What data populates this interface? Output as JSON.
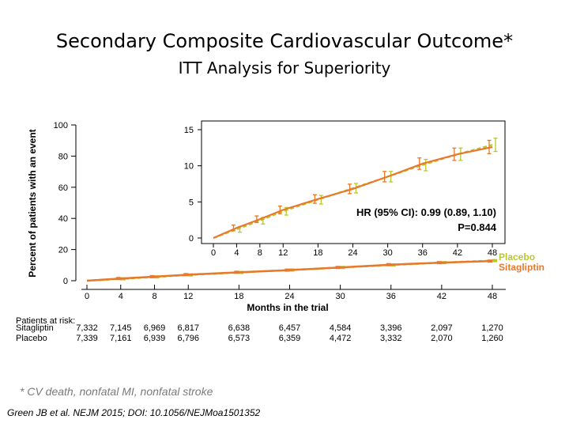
{
  "slide": {
    "title": "Secondary Composite Cardiovascular Outcome*",
    "subtitle": "ITT Analysis for Superiority",
    "footnote": "* CV death, nonfatal MI, nonfatal stroke",
    "citation": "Green JB et al. NEJM 2015; DOI: 10.1056/NEJMoa1501352"
  },
  "colors": {
    "placebo": "#b7c82a",
    "sitagliptin": "#e8782c"
  },
  "chart_data": [
    {
      "type": "line",
      "title": "",
      "xlabel": "Months in the trial",
      "ylabel": "Percent of patients with an event",
      "xlim": [
        0,
        48
      ],
      "ylim": [
        0,
        100
      ],
      "xticks": [
        0,
        4,
        8,
        12,
        18,
        24,
        30,
        36,
        42,
        48
      ],
      "yticks": [
        0,
        20,
        40,
        60,
        80,
        100
      ],
      "legend": [
        "Placebo",
        "Sitagliptin"
      ],
      "legend_position": "right",
      "series": [
        {
          "name": "Placebo",
          "x": [
            0,
            4,
            8,
            12,
            18,
            24,
            30,
            36,
            42,
            48
          ],
          "y": [
            0,
            1.2,
            2.4,
            3.7,
            5.3,
            6.9,
            8.5,
            10.1,
            11.6,
            12.9
          ]
        },
        {
          "name": "Sitagliptin",
          "x": [
            0,
            4,
            8,
            12,
            18,
            24,
            30,
            36,
            42,
            48
          ],
          "y": [
            0,
            1.4,
            2.6,
            3.9,
            5.4,
            6.8,
            8.5,
            10.3,
            11.6,
            12.6
          ]
        }
      ],
      "at_risk": {
        "label": "Patients at risk:",
        "rows": [
          {
            "name": "Sitagliptin",
            "values": [
              "7,332",
              "7,145",
              "6,969",
              "6,817",
              "6,638",
              "6,457",
              "4,584",
              "3,396",
              "2,097",
              "1,270"
            ]
          },
          {
            "name": "Placebo",
            "values": [
              "7,339",
              "7,161",
              "6,939",
              "6,796",
              "6,573",
              "6,359",
              "4,472",
              "3,332",
              "2,070",
              "1,260"
            ]
          }
        ]
      }
    },
    {
      "type": "line",
      "title": "",
      "xlim": [
        0,
        48
      ],
      "ylim": [
        0,
        15
      ],
      "xticks": [
        0,
        4,
        8,
        12,
        18,
        24,
        30,
        36,
        42,
        48
      ],
      "yticks": [
        0,
        5,
        10,
        15
      ],
      "annotation": {
        "hr": "HR (95% CI): 0.99 (0.89, 1.10)",
        "p": "P=0.844"
      },
      "series": [
        {
          "name": "Placebo",
          "x": [
            0,
            4,
            8,
            12,
            18,
            24,
            30,
            36,
            42,
            48
          ],
          "y": [
            0,
            1.2,
            2.4,
            3.7,
            5.3,
            6.9,
            8.5,
            10.1,
            11.6,
            12.9
          ]
        },
        {
          "name": "Sitagliptin",
          "x": [
            0,
            4,
            8,
            12,
            18,
            24,
            30,
            36,
            42,
            48
          ],
          "y": [
            0,
            1.4,
            2.6,
            3.9,
            5.4,
            6.8,
            8.5,
            10.3,
            11.6,
            12.6
          ]
        }
      ]
    }
  ]
}
